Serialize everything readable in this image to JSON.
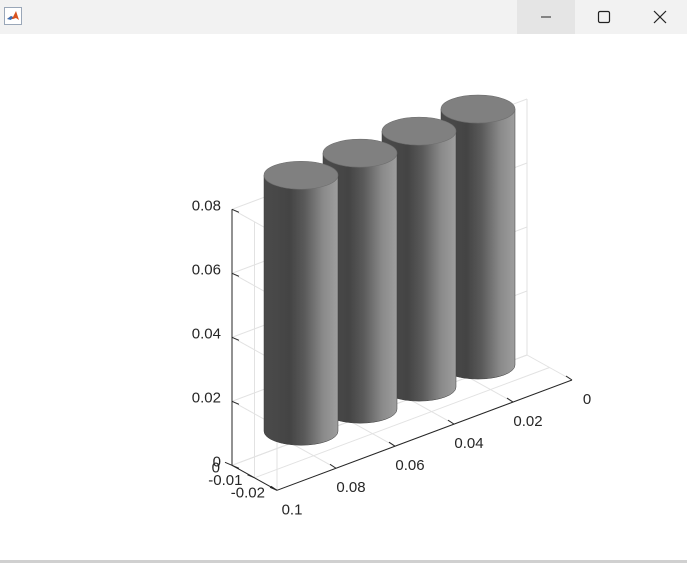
{
  "window": {
    "icons": {
      "app": "matlab-logo-icon",
      "minimize": "minimize-icon",
      "maximize": "maximize-icon",
      "close": "close-icon"
    }
  },
  "chart_data": {
    "type": "bar3",
    "title": "",
    "xlabel": "",
    "ylabel": "",
    "zlabel": "",
    "bar_color": "#808080",
    "bar_style": "cylinder",
    "bars": [
      {
        "x": 0.08,
        "y": 0,
        "z": 0.08
      },
      {
        "x": 0.06,
        "y": 0,
        "z": 0.08
      },
      {
        "x": 0.04,
        "y": 0,
        "z": 0.08
      },
      {
        "x": 0.02,
        "y": 0,
        "z": 0.08
      }
    ],
    "x_ticks": [
      "0.1",
      "0.08",
      "0.06",
      "0.04",
      "0.02",
      "0"
    ],
    "y_ticks": [
      "-0.02",
      "-0.01",
      "0"
    ],
    "z_ticks": [
      "0",
      "0.02",
      "0.04",
      "0.06",
      "0.08"
    ],
    "grid": true
  }
}
